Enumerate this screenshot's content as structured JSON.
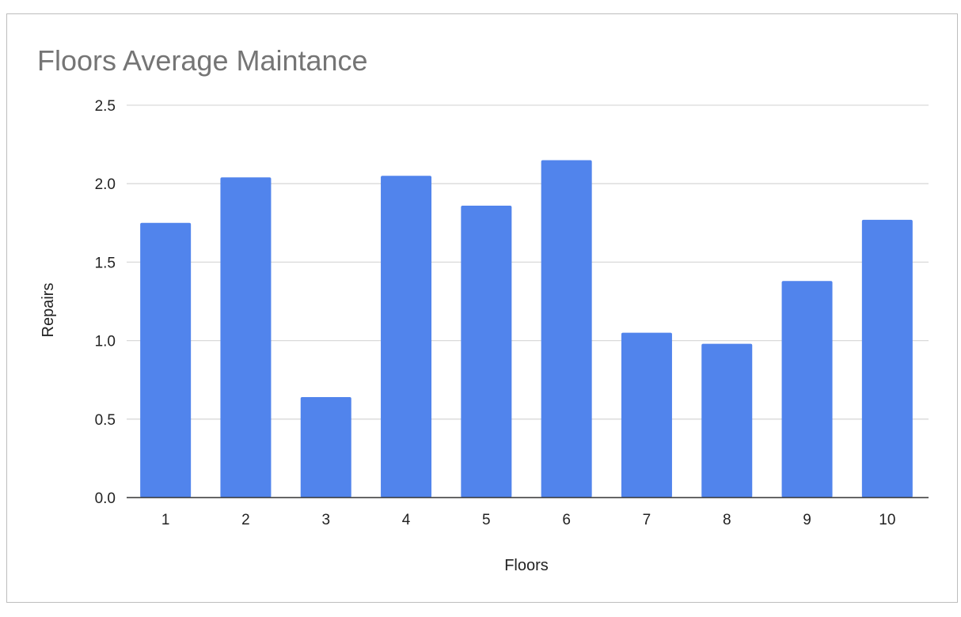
{
  "chart_data": {
    "type": "bar",
    "title": "Floors Average Maintance",
    "xlabel": "Floors",
    "ylabel": "Repairs",
    "categories": [
      "1",
      "2",
      "3",
      "4",
      "5",
      "6",
      "7",
      "8",
      "9",
      "10"
    ],
    "values": [
      1.75,
      2.04,
      0.64,
      2.05,
      1.86,
      2.15,
      1.05,
      0.98,
      1.38,
      1.77
    ],
    "ylim": [
      0,
      2.5
    ],
    "yticks": [
      "0.0",
      "0.5",
      "1.0",
      "1.5",
      "2.0",
      "2.5"
    ],
    "grid": true,
    "legend": "none",
    "colors": {
      "bar": "#5184ec",
      "grid": "#d9d9d9",
      "axis": "#333333",
      "title": "#757575"
    }
  }
}
